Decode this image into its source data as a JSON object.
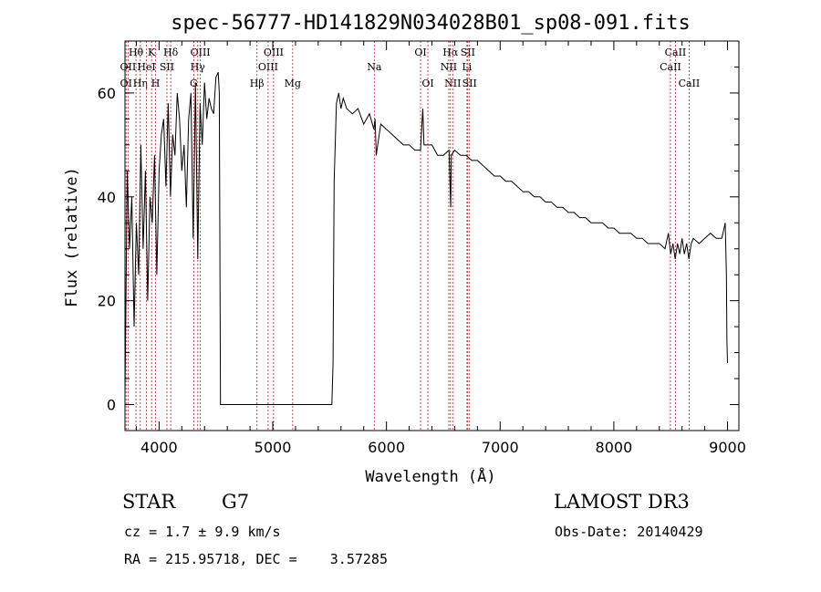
{
  "chart_data": {
    "type": "line",
    "title": "spec-56777-HD141829N034028B01_sp08-091.fits",
    "xlabel": "Wavelength (Å)",
    "ylabel": "Flux (relative)",
    "xlim": [
      3700,
      9100
    ],
    "ylim": [
      -5,
      70
    ],
    "xticks": [
      4000,
      5000,
      6000,
      7000,
      8000,
      9000
    ],
    "yticks": [
      0,
      20,
      40,
      60
    ],
    "grid": false,
    "series": [
      {
        "color": "#000000",
        "x": [
          3700,
          3720,
          3740,
          3760,
          3780,
          3800,
          3820,
          3840,
          3860,
          3880,
          3900,
          3920,
          3940,
          3960,
          3980,
          4000,
          4020,
          4040,
          4060,
          4080,
          4100,
          4120,
          4140,
          4160,
          4180,
          4200,
          4220,
          4240,
          4260,
          4280,
          4300,
          4320,
          4340,
          4360,
          4380,
          4400,
          4420,
          4440,
          4460,
          4480,
          4500,
          4520,
          4530,
          4540,
          5520,
          5530,
          5540,
          5560,
          5580,
          5600,
          5620,
          5650,
          5700,
          5750,
          5800,
          5850,
          5890,
          5900,
          5910,
          5950,
          6000,
          6050,
          6100,
          6150,
          6200,
          6250,
          6300,
          6320,
          6330,
          6350,
          6400,
          6450,
          6500,
          6550,
          6560,
          6565,
          6570,
          6600,
          6650,
          6700,
          6750,
          6800,
          6850,
          6900,
          6950,
          7000,
          7050,
          7100,
          7150,
          7200,
          7250,
          7300,
          7350,
          7400,
          7450,
          7500,
          7550,
          7600,
          7650,
          7700,
          7750,
          7800,
          7850,
          7900,
          7950,
          8000,
          8050,
          8100,
          8150,
          8200,
          8250,
          8300,
          8350,
          8400,
          8450,
          8480,
          8500,
          8520,
          8540,
          8560,
          8580,
          8600,
          8620,
          8640,
          8660,
          8680,
          8700,
          8750,
          8800,
          8850,
          8900,
          8950,
          8980,
          8990,
          8995,
          9000
        ],
        "y": [
          2,
          45,
          30,
          40,
          15,
          35,
          25,
          50,
          30,
          45,
          20,
          40,
          35,
          48,
          25,
          45,
          52,
          55,
          42,
          58,
          40,
          52,
          48,
          60,
          55,
          45,
          50,
          38,
          55,
          60,
          32,
          62,
          28,
          58,
          50,
          62,
          55,
          59,
          57,
          56,
          63,
          64,
          60,
          0,
          0,
          8,
          43,
          58,
          60,
          57,
          59,
          57,
          56,
          57,
          54,
          56,
          53,
          55,
          48,
          54,
          53,
          52,
          51,
          50,
          50,
          49,
          49,
          57,
          50,
          50,
          50,
          48,
          48,
          49,
          42,
          38,
          48,
          49,
          48,
          48,
          47,
          47,
          46,
          45,
          44,
          44,
          43,
          43,
          42,
          41,
          41,
          40,
          40,
          39,
          39,
          38,
          38,
          37,
          37,
          36,
          36,
          35,
          35,
          35,
          34,
          34,
          33,
          33,
          33,
          32,
          32,
          31,
          31,
          31,
          30,
          33,
          29,
          31,
          28,
          31,
          29,
          32,
          29,
          31,
          28,
          31,
          32,
          31,
          32,
          33,
          32,
          32,
          35,
          25,
          12,
          8
        ]
      }
    ],
    "spectral_lines": [
      {
        "label": "OII",
        "x": 3727,
        "row": 2
      },
      {
        "label": "Hθ",
        "x": 3797,
        "row": 1
      },
      {
        "label": "OI",
        "x": 3710,
        "row": 3
      },
      {
        "label": "Hη",
        "x": 3835,
        "row": 3
      },
      {
        "label": "HeI",
        "x": 3889,
        "row": 2
      },
      {
        "label": "K",
        "x": 3934,
        "row": 1
      },
      {
        "label": "H",
        "x": 3969,
        "row": 3
      },
      {
        "label": "SII",
        "x": 4069,
        "row": 2
      },
      {
        "label": "Hδ",
        "x": 4102,
        "row": 1
      },
      {
        "label": "OIII",
        "x": 4363,
        "row": 1
      },
      {
        "label": "Hγ",
        "x": 4340,
        "row": 2
      },
      {
        "label": "G",
        "x": 4305,
        "row": 3
      },
      {
        "label": "OIII",
        "x": 4959,
        "row": 2
      },
      {
        "label": "OIII",
        "x": 5007,
        "row": 1
      },
      {
        "label": "Hβ",
        "x": 4861,
        "row": 3
      },
      {
        "label": "Mg",
        "x": 5175,
        "row": 3
      },
      {
        "label": "Na",
        "x": 5893,
        "row": 2
      },
      {
        "label": "OI",
        "x": 6300,
        "row": 1
      },
      {
        "label": "OI",
        "x": 6364,
        "row": 3
      },
      {
        "label": "Hα",
        "x": 6563,
        "row": 1
      },
      {
        "label": "NII",
        "x": 6548,
        "row": 2
      },
      {
        "label": "NII",
        "x": 6583,
        "row": 3
      },
      {
        "label": "SII",
        "x": 6716,
        "row": 1
      },
      {
        "label": "Li",
        "x": 6708,
        "row": 2
      },
      {
        "label": "SII",
        "x": 6731,
        "row": 3
      },
      {
        "label": "CaII",
        "x": 8542,
        "row": 1
      },
      {
        "label": "CaII",
        "x": 8498,
        "row": 2
      },
      {
        "label": "CaII",
        "x": 8662,
        "row": 3
      }
    ]
  },
  "info": {
    "object_type": "STAR",
    "subclass": "G7",
    "survey": "LAMOST DR3",
    "redshift_line": "cz = 1.7 ± 9.9 km/s",
    "obs_date_line": "Obs-Date: 20140429",
    "coords_line": "RA = 215.95718, DEC =    3.57285"
  },
  "colors": {
    "spectrum": "#000000",
    "line_markers": "#b22222",
    "axes": "#000000"
  }
}
